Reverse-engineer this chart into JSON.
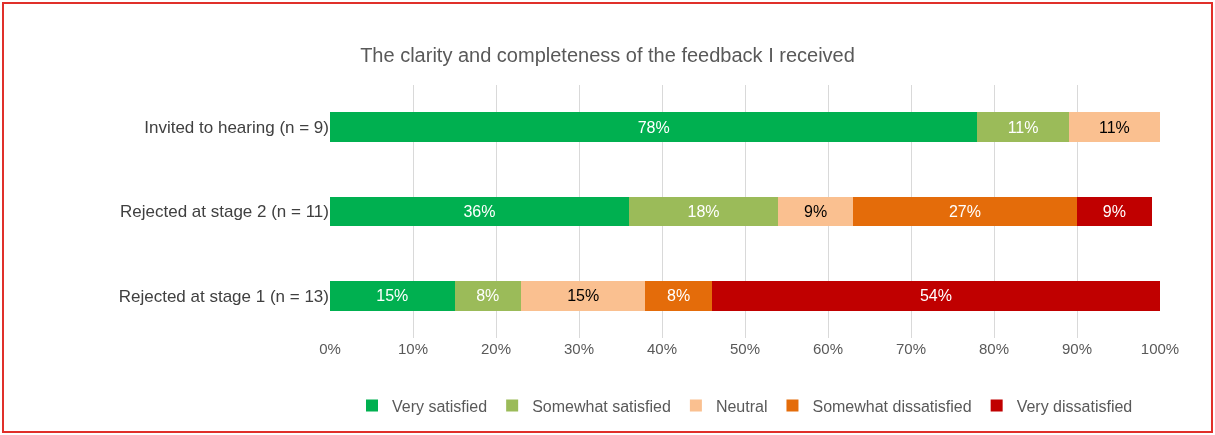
{
  "chart_data": {
    "type": "bar",
    "orientation": "horizontal",
    "stacked": true,
    "title": "The clarity and completeness of the feedback I received",
    "categories": [
      "Invited to hearing (n = 9)",
      "Rejected at stage 2 (n = 11)",
      "Rejected at stage 1 (n = 13)"
    ],
    "series": [
      {
        "name": "Very satisfied",
        "color": "#00b050",
        "values": [
          78,
          36,
          15
        ],
        "value_labels": [
          "78%",
          "36%",
          "15%"
        ]
      },
      {
        "name": "Somewhat satisfied",
        "color": "#9bbb59",
        "values": [
          11,
          18,
          8
        ],
        "value_labels": [
          "11%",
          "18%",
          "8%"
        ]
      },
      {
        "name": "Neutral",
        "color": "#fac090",
        "values": [
          11,
          9,
          15
        ],
        "value_labels": [
          "11%",
          "9%",
          "15%"
        ]
      },
      {
        "name": "Somewhat dissatisfied",
        "color": "#e46c0a",
        "values": [
          null,
          27,
          8
        ],
        "value_labels": [
          null,
          "27%",
          "8%"
        ]
      },
      {
        "name": "Very dissatisfied",
        "color": "#c00000",
        "values": [
          null,
          9,
          54
        ],
        "value_labels": [
          null,
          "9%",
          "54%"
        ]
      }
    ],
    "xlim": [
      0,
      100
    ],
    "xticks": [
      {
        "value": 0,
        "label": "0%"
      },
      {
        "value": 10,
        "label": "10%"
      },
      {
        "value": 20,
        "label": "20%"
      },
      {
        "value": 30,
        "label": "30%"
      },
      {
        "value": 40,
        "label": "40%"
      },
      {
        "value": 50,
        "label": "50%"
      },
      {
        "value": 60,
        "label": "60%"
      },
      {
        "value": 70,
        "label": "70%"
      },
      {
        "value": 80,
        "label": "80%"
      },
      {
        "value": 90,
        "label": "90%"
      },
      {
        "value": 100,
        "label": "100%"
      }
    ],
    "grid": "x",
    "legend": "bottom"
  }
}
